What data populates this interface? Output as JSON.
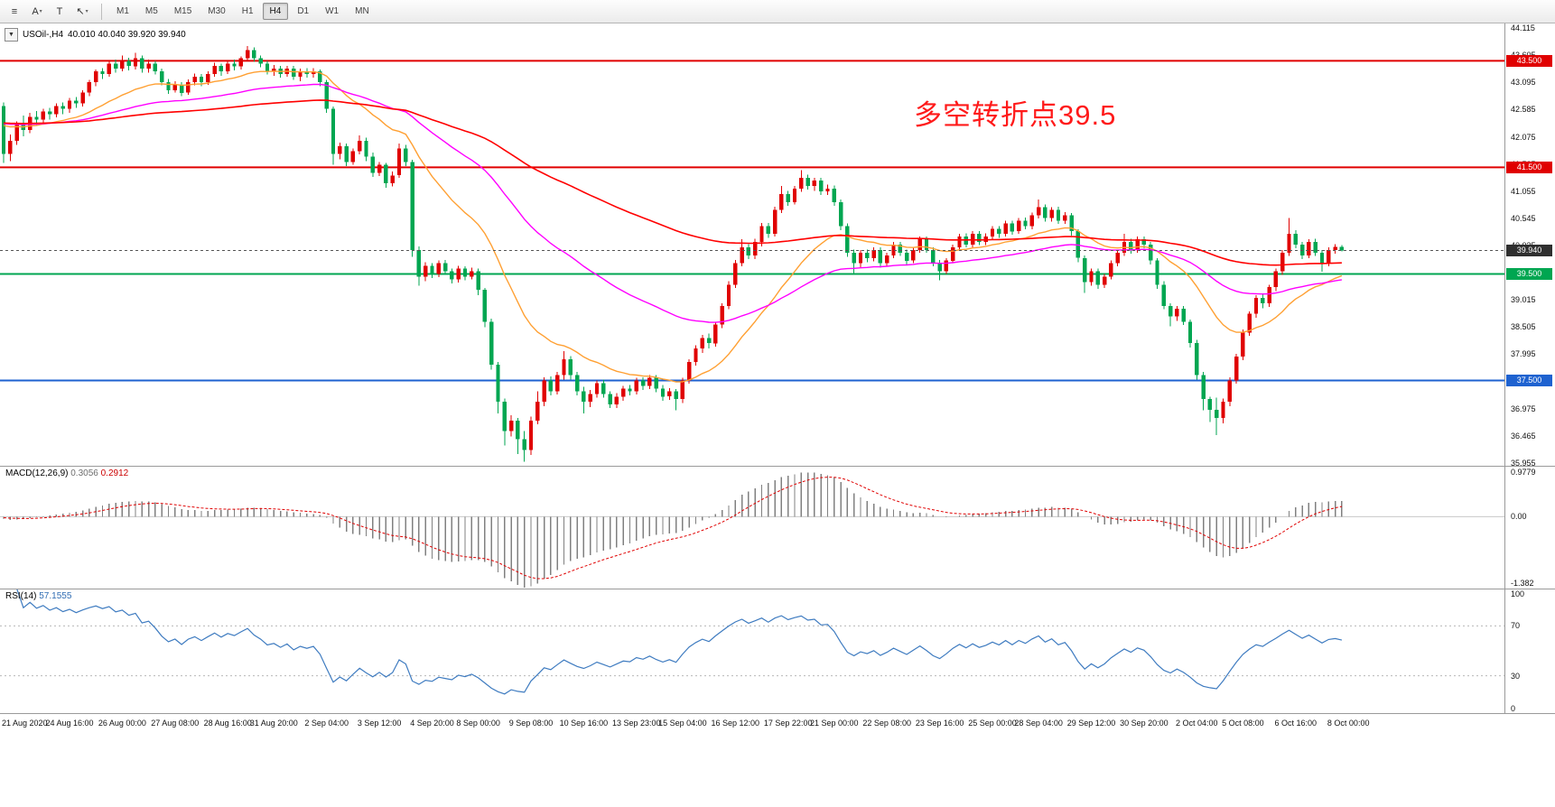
{
  "toolbar": {
    "tools": [
      {
        "name": "chart-mode-tool",
        "glyph": "≡",
        "dropdown": false
      },
      {
        "name": "annotate-a-tool",
        "glyph": "A",
        "dropdown": true
      },
      {
        "name": "text-tool",
        "glyph": "T",
        "dropdown": false
      },
      {
        "name": "cursor-tool",
        "glyph": "↖",
        "dropdown": true
      }
    ],
    "timeframes": [
      "M1",
      "M5",
      "M15",
      "M30",
      "H1",
      "H4",
      "D1",
      "W1",
      "MN"
    ],
    "active_timeframe": "H4"
  },
  "chart": {
    "header": {
      "collapse_glyph": "▼",
      "symbol_period": "USOil-,H4",
      "ohlc_text": "40.010 40.040 39.920 39.940"
    },
    "annotation": {
      "text": "多空转折点39.5",
      "color": "#ff1a1a"
    },
    "price_axis": {
      "render_range": [
        35.9,
        44.2
      ],
      "ticks": [
        "44.115",
        "43.605",
        "43.095",
        "42.585",
        "42.075",
        "41.565",
        "41.055",
        "40.545",
        "40.035",
        "39.525",
        "39.015",
        "38.505",
        "37.995",
        "37.485",
        "36.975",
        "36.465",
        "35.955"
      ]
    },
    "levels": [
      {
        "price": 43.5,
        "label": "43.500",
        "color": "#e00000",
        "width": 2
      },
      {
        "price": 41.5,
        "label": "41.500",
        "color": "#e00000",
        "width": 2
      },
      {
        "price": 39.5,
        "label": "39.500",
        "color": "#00a651",
        "width": 2
      },
      {
        "price": 37.5,
        "label": "37.500",
        "color": "#1e62d0",
        "width": 2
      }
    ],
    "current_price": {
      "value": 39.94,
      "label": "39.940",
      "line_color": "#555555",
      "badge_bg": "#2f2f2f"
    },
    "candle_colors": {
      "bull": "#e00000",
      "bear": "#00a651"
    },
    "moving_averages": [
      {
        "name": "ma-fast",
        "period": 21,
        "color": "#ffa033",
        "width": 1.4
      },
      {
        "name": "ma-mid",
        "period": 55,
        "color": "#ff00ff",
        "width": 1.4
      },
      {
        "name": "ma-slow",
        "period": 130,
        "color": "#ff0000",
        "width": 1.6
      }
    ]
  },
  "chart_data": {
    "type": "candlestick",
    "symbol": "USOil",
    "timeframe": "H4",
    "ohlc_current": {
      "open": "40.010",
      "high": "40.040",
      "low": "39.920",
      "close": "39.940"
    },
    "x_labels": [
      "21 Aug 2020",
      "24 Aug 16:00",
      "26 Aug 00:00",
      "27 Aug 08:00",
      "28 Aug 16:00",
      "31 Aug 20:00",
      "2 Sep 04:00",
      "3 Sep 12:00",
      "4 Sep 20:00",
      "8 Sep 00:00",
      "9 Sep 08:00",
      "10 Sep 16:00",
      "13 Sep 23:00",
      "15 Sep 04:00",
      "16 Sep 12:00",
      "17 Sep 22:00",
      "21 Sep 00:00",
      "22 Sep 08:00",
      "23 Sep 16:00",
      "25 Sep 00:00",
      "28 Sep 04:00",
      "29 Sep 12:00",
      "30 Sep 20:00",
      "2 Oct 04:00",
      "5 Oct 08:00",
      "6 Oct 16:00",
      "8 Oct 00:00"
    ],
    "x_label_indices": [
      0,
      10,
      18,
      26,
      34,
      41,
      49,
      57,
      65,
      72,
      80,
      88,
      96,
      103,
      111,
      119,
      126,
      134,
      142,
      150,
      157,
      165,
      173,
      181,
      188,
      196,
      204
    ],
    "candles": [
      [
        42.65,
        42.72,
        41.58,
        41.75
      ],
      [
        41.75,
        42.12,
        41.62,
        42.0
      ],
      [
        42.0,
        42.36,
        41.92,
        42.3
      ],
      [
        42.3,
        42.47,
        42.08,
        42.2
      ],
      [
        42.2,
        42.52,
        42.14,
        42.45
      ],
      [
        42.45,
        42.56,
        42.28,
        42.4
      ],
      [
        42.4,
        42.6,
        42.3,
        42.55
      ],
      [
        42.55,
        42.62,
        42.4,
        42.5
      ],
      [
        42.5,
        42.7,
        42.44,
        42.65
      ],
      [
        42.65,
        42.72,
        42.5,
        42.6
      ],
      [
        42.6,
        42.8,
        42.52,
        42.75
      ],
      [
        42.75,
        42.82,
        42.62,
        42.7
      ],
      [
        42.7,
        42.95,
        42.64,
        42.9
      ],
      [
        42.9,
        43.14,
        42.84,
        43.1
      ],
      [
        43.1,
        43.34,
        43.02,
        43.3
      ],
      [
        43.3,
        43.36,
        43.16,
        43.25
      ],
      [
        43.25,
        43.5,
        43.2,
        43.45
      ],
      [
        43.45,
        43.52,
        43.28,
        43.35
      ],
      [
        43.35,
        43.6,
        43.3,
        43.5
      ],
      [
        43.5,
        43.56,
        43.32,
        43.4
      ],
      [
        43.4,
        43.65,
        43.34,
        43.55
      ],
      [
        43.55,
        43.6,
        43.28,
        43.35
      ],
      [
        43.35,
        43.52,
        43.28,
        43.45
      ],
      [
        43.45,
        43.5,
        43.24,
        43.3
      ],
      [
        43.3,
        43.35,
        43.04,
        43.1
      ],
      [
        43.1,
        43.16,
        42.88,
        42.95
      ],
      [
        42.95,
        43.12,
        42.9,
        43.05
      ],
      [
        43.05,
        43.1,
        42.84,
        42.9
      ],
      [
        42.9,
        43.15,
        42.86,
        43.1
      ],
      [
        43.1,
        43.26,
        43.04,
        43.2
      ],
      [
        43.2,
        43.25,
        43.02,
        43.1
      ],
      [
        43.1,
        43.3,
        43.05,
        43.25
      ],
      [
        43.25,
        43.46,
        43.2,
        43.4
      ],
      [
        43.4,
        43.45,
        43.22,
        43.3
      ],
      [
        43.3,
        43.5,
        43.25,
        43.45
      ],
      [
        43.45,
        43.52,
        43.32,
        43.4
      ],
      [
        43.4,
        43.58,
        43.34,
        43.55
      ],
      [
        43.55,
        43.78,
        43.5,
        43.7
      ],
      [
        43.7,
        43.75,
        43.48,
        43.55
      ],
      [
        43.55,
        43.6,
        43.38,
        43.45
      ],
      [
        43.45,
        43.5,
        43.24,
        43.3
      ],
      [
        43.3,
        43.42,
        43.22,
        43.35
      ],
      [
        43.35,
        43.4,
        43.18,
        43.25
      ],
      [
        43.25,
        43.4,
        43.2,
        43.35
      ],
      [
        43.35,
        43.4,
        43.14,
        43.2
      ],
      [
        43.2,
        43.35,
        43.12,
        43.3
      ],
      [
        43.3,
        43.36,
        43.18,
        43.25
      ],
      [
        43.25,
        43.36,
        43.18,
        43.3
      ],
      [
        43.3,
        43.34,
        43.02,
        43.1
      ],
      [
        43.1,
        43.14,
        42.52,
        42.6
      ],
      [
        42.6,
        42.64,
        41.55,
        41.75
      ],
      [
        41.75,
        41.96,
        41.65,
        41.9
      ],
      [
        41.9,
        41.95,
        41.52,
        41.6
      ],
      [
        41.6,
        41.85,
        41.55,
        41.8
      ],
      [
        41.8,
        42.1,
        41.74,
        42.0
      ],
      [
        42.0,
        42.06,
        41.62,
        41.7
      ],
      [
        41.7,
        41.78,
        41.32,
        41.4
      ],
      [
        41.4,
        41.6,
        41.34,
        41.55
      ],
      [
        41.55,
        41.58,
        41.12,
        41.2
      ],
      [
        41.2,
        41.42,
        41.14,
        41.35
      ],
      [
        41.35,
        41.95,
        41.3,
        41.85
      ],
      [
        41.85,
        41.92,
        41.52,
        41.6
      ],
      [
        41.6,
        41.64,
        39.82,
        39.95
      ],
      [
        39.95,
        40.02,
        39.28,
        39.45
      ],
      [
        39.45,
        39.72,
        39.36,
        39.65
      ],
      [
        39.65,
        39.7,
        39.42,
        39.5
      ],
      [
        39.5,
        39.75,
        39.44,
        39.7
      ],
      [
        39.7,
        39.76,
        39.48,
        39.55
      ],
      [
        39.55,
        39.6,
        39.32,
        39.4
      ],
      [
        39.4,
        39.65,
        39.34,
        39.6
      ],
      [
        39.6,
        39.64,
        39.38,
        39.45
      ],
      [
        39.45,
        39.62,
        39.4,
        39.55
      ],
      [
        39.55,
        39.6,
        39.1,
        39.2
      ],
      [
        39.2,
        39.24,
        38.5,
        38.6
      ],
      [
        38.6,
        38.66,
        37.7,
        37.8
      ],
      [
        37.8,
        37.85,
        36.88,
        37.1
      ],
      [
        37.1,
        37.16,
        36.28,
        36.55
      ],
      [
        36.55,
        36.85,
        36.45,
        36.75
      ],
      [
        36.75,
        36.8,
        36.12,
        36.4
      ],
      [
        36.4,
        36.55,
        35.98,
        36.2
      ],
      [
        36.2,
        36.82,
        36.1,
        36.75
      ],
      [
        36.75,
        37.3,
        36.68,
        37.1
      ],
      [
        37.1,
        37.56,
        37.02,
        37.5
      ],
      [
        37.5,
        37.58,
        37.22,
        37.3
      ],
      [
        37.3,
        37.66,
        37.24,
        37.6
      ],
      [
        37.6,
        38.05,
        37.52,
        37.9
      ],
      [
        37.9,
        37.96,
        37.52,
        37.6
      ],
      [
        37.6,
        37.66,
        37.22,
        37.3
      ],
      [
        37.3,
        37.38,
        36.88,
        37.1
      ],
      [
        37.1,
        37.32,
        37.0,
        37.25
      ],
      [
        37.25,
        37.5,
        37.18,
        37.45
      ],
      [
        37.45,
        37.52,
        37.18,
        37.25
      ],
      [
        37.25,
        37.3,
        36.98,
        37.05
      ],
      [
        37.05,
        37.26,
        36.98,
        37.2
      ],
      [
        37.2,
        37.4,
        37.12,
        37.35
      ],
      [
        37.35,
        37.42,
        37.22,
        37.3
      ],
      [
        37.3,
        37.55,
        37.24,
        37.5
      ],
      [
        37.5,
        37.56,
        37.32,
        37.4
      ],
      [
        37.4,
        37.6,
        37.34,
        37.55
      ],
      [
        37.55,
        37.6,
        37.28,
        37.35
      ],
      [
        37.35,
        37.42,
        37.12,
        37.2
      ],
      [
        37.2,
        37.36,
        37.14,
        37.3
      ],
      [
        37.3,
        37.34,
        36.94,
        37.15
      ],
      [
        37.15,
        37.55,
        37.08,
        37.5
      ],
      [
        37.5,
        37.9,
        37.44,
        37.85
      ],
      [
        37.85,
        38.16,
        37.78,
        38.1
      ],
      [
        38.1,
        38.36,
        38.02,
        38.3
      ],
      [
        38.3,
        38.38,
        38.1,
        38.2
      ],
      [
        38.2,
        38.6,
        38.14,
        38.55
      ],
      [
        38.55,
        38.95,
        38.48,
        38.9
      ],
      [
        38.9,
        39.36,
        38.84,
        39.3
      ],
      [
        39.3,
        39.76,
        39.24,
        39.7
      ],
      [
        39.7,
        40.15,
        39.64,
        40.0
      ],
      [
        40.0,
        40.06,
        39.78,
        39.85
      ],
      [
        39.85,
        40.16,
        39.78,
        40.1
      ],
      [
        40.1,
        40.46,
        40.02,
        40.4
      ],
      [
        40.4,
        40.46,
        40.18,
        40.25
      ],
      [
        40.25,
        40.76,
        40.2,
        40.7
      ],
      [
        40.7,
        41.15,
        40.64,
        41.0
      ],
      [
        41.0,
        41.06,
        40.78,
        40.85
      ],
      [
        40.85,
        41.15,
        40.8,
        41.1
      ],
      [
        41.1,
        41.45,
        41.04,
        41.3
      ],
      [
        41.3,
        41.36,
        41.08,
        41.15
      ],
      [
        41.15,
        41.3,
        41.06,
        41.25
      ],
      [
        41.25,
        41.3,
        40.98,
        41.05
      ],
      [
        41.05,
        41.18,
        40.98,
        41.1
      ],
      [
        41.1,
        41.16,
        40.78,
        40.85
      ],
      [
        40.85,
        40.9,
        40.32,
        40.4
      ],
      [
        40.4,
        40.45,
        39.82,
        39.9
      ],
      [
        39.9,
        39.96,
        39.48,
        39.7
      ],
      [
        39.7,
        39.95,
        39.62,
        39.9
      ],
      [
        39.9,
        39.96,
        39.72,
        39.8
      ],
      [
        39.8,
        40.0,
        39.74,
        39.95
      ],
      [
        39.95,
        40.0,
        39.62,
        39.7
      ],
      [
        39.7,
        39.9,
        39.64,
        39.85
      ],
      [
        39.85,
        40.1,
        39.8,
        40.05
      ],
      [
        40.05,
        40.1,
        39.84,
        39.9
      ],
      [
        39.9,
        39.96,
        39.68,
        39.75
      ],
      [
        39.75,
        40.0,
        39.7,
        39.95
      ],
      [
        39.95,
        40.2,
        39.9,
        40.15
      ],
      [
        40.15,
        40.2,
        39.9,
        39.95
      ],
      [
        39.95,
        40.0,
        39.64,
        39.7
      ],
      [
        39.7,
        39.76,
        39.38,
        39.55
      ],
      [
        39.55,
        39.8,
        39.5,
        39.75
      ],
      [
        39.75,
        40.05,
        39.7,
        40.0
      ],
      [
        40.0,
        40.25,
        39.95,
        40.2
      ],
      [
        40.2,
        40.26,
        40.0,
        40.05
      ],
      [
        40.05,
        40.3,
        40.0,
        40.25
      ],
      [
        40.25,
        40.3,
        40.04,
        40.1
      ],
      [
        40.1,
        40.26,
        40.04,
        40.2
      ],
      [
        40.2,
        40.4,
        40.14,
        40.35
      ],
      [
        40.35,
        40.4,
        40.18,
        40.25
      ],
      [
        40.25,
        40.5,
        40.2,
        40.45
      ],
      [
        40.45,
        40.5,
        40.24,
        40.3
      ],
      [
        40.3,
        40.55,
        40.25,
        40.5
      ],
      [
        40.5,
        40.56,
        40.34,
        40.4
      ],
      [
        40.4,
        40.65,
        40.34,
        40.6
      ],
      [
        40.6,
        40.9,
        40.54,
        40.75
      ],
      [
        40.75,
        40.8,
        40.48,
        40.55
      ],
      [
        40.55,
        40.75,
        40.48,
        40.7
      ],
      [
        40.7,
        40.76,
        40.44,
        40.5
      ],
      [
        40.5,
        40.66,
        40.44,
        40.6
      ],
      [
        40.6,
        40.64,
        40.22,
        40.3
      ],
      [
        40.3,
        40.34,
        39.72,
        39.8
      ],
      [
        39.8,
        39.85,
        39.14,
        39.35
      ],
      [
        39.35,
        39.6,
        39.28,
        39.55
      ],
      [
        39.55,
        39.6,
        39.22,
        39.3
      ],
      [
        39.3,
        39.5,
        39.24,
        39.45
      ],
      [
        39.45,
        39.75,
        39.4,
        39.7
      ],
      [
        39.7,
        39.95,
        39.64,
        39.9
      ],
      [
        39.9,
        40.25,
        39.84,
        40.1
      ],
      [
        40.1,
        40.16,
        39.88,
        39.95
      ],
      [
        39.95,
        40.2,
        39.9,
        40.15
      ],
      [
        40.15,
        40.2,
        39.98,
        40.05
      ],
      [
        40.05,
        40.1,
        39.68,
        39.75
      ],
      [
        39.75,
        39.8,
        39.22,
        39.3
      ],
      [
        39.3,
        39.36,
        38.84,
        38.9
      ],
      [
        38.9,
        38.95,
        38.52,
        38.7
      ],
      [
        38.7,
        38.9,
        38.62,
        38.85
      ],
      [
        38.85,
        38.9,
        38.54,
        38.6
      ],
      [
        38.6,
        38.64,
        38.12,
        38.2
      ],
      [
        38.2,
        38.26,
        37.52,
        37.6
      ],
      [
        37.6,
        37.66,
        36.94,
        37.15
      ],
      [
        37.15,
        37.2,
        36.72,
        36.95
      ],
      [
        36.95,
        37.18,
        36.48,
        36.8
      ],
      [
        36.8,
        37.16,
        36.7,
        37.1
      ],
      [
        37.1,
        37.56,
        37.02,
        37.5
      ],
      [
        37.5,
        38.0,
        37.44,
        37.95
      ],
      [
        37.95,
        38.46,
        37.88,
        38.4
      ],
      [
        38.4,
        38.8,
        38.34,
        38.75
      ],
      [
        38.75,
        39.1,
        38.68,
        39.05
      ],
      [
        39.05,
        39.12,
        38.86,
        38.95
      ],
      [
        38.95,
        39.3,
        38.88,
        39.25
      ],
      [
        39.25,
        39.6,
        39.18,
        39.55
      ],
      [
        39.55,
        39.95,
        39.48,
        39.9
      ],
      [
        39.9,
        40.55,
        39.84,
        40.25
      ],
      [
        40.25,
        40.32,
        39.98,
        40.05
      ],
      [
        40.05,
        40.1,
        39.78,
        39.85
      ],
      [
        39.85,
        40.15,
        39.8,
        40.1
      ],
      [
        40.1,
        40.16,
        39.84,
        39.9
      ],
      [
        39.9,
        39.95,
        39.54,
        39.7
      ],
      [
        39.7,
        40.0,
        39.64,
        39.95
      ],
      [
        39.95,
        40.06,
        39.88,
        40.01
      ],
      [
        40.01,
        40.04,
        39.92,
        39.94
      ]
    ]
  },
  "macd": {
    "name": "MACD(12,26,9)",
    "value_main": "0.3056",
    "value_signal": "0.2912",
    "params": {
      "fast": 12,
      "slow": 26,
      "signal": 9
    },
    "axis": {
      "top_label": "0.9779",
      "zero_label": "0.00",
      "bottom_label": "-1.382",
      "range": [
        -1.382,
        0.9779
      ]
    },
    "colors": {
      "histogram": "#808080",
      "signal": "#e00000"
    }
  },
  "rsi": {
    "name": "RSI(14)",
    "value": "57.1555",
    "period": 14,
    "axis": {
      "labels": [
        "100",
        "70",
        "30",
        "0"
      ],
      "range": [
        0,
        100
      ],
      "guide_levels": [
        70,
        30
      ]
    },
    "color": "#3e7bc0"
  }
}
